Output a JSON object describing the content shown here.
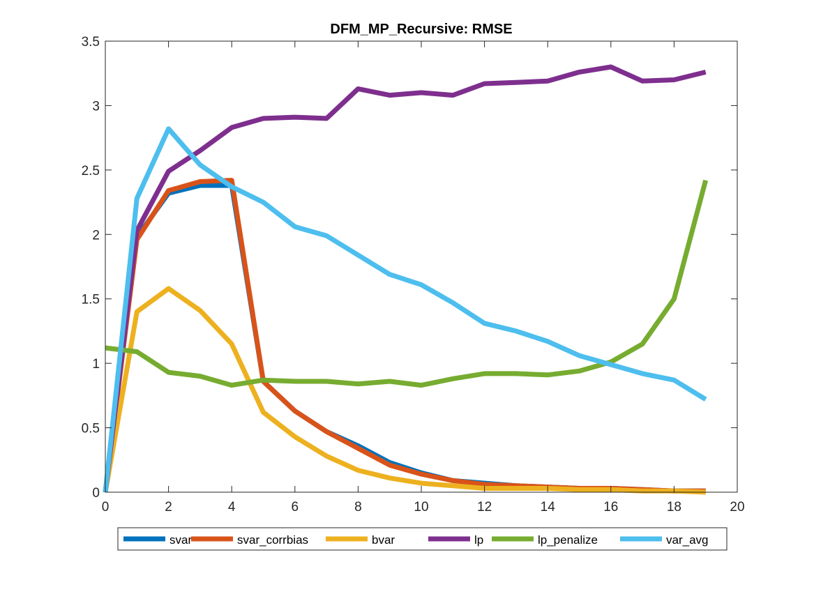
{
  "chart_data": {
    "type": "line",
    "title": "DFM_MP_Recursive: RMSE",
    "xlabel": "",
    "ylabel": "",
    "xlim": [
      0,
      20
    ],
    "ylim": [
      0,
      3.5
    ],
    "xticks": [
      0,
      2,
      4,
      6,
      8,
      10,
      12,
      14,
      16,
      18,
      20
    ],
    "yticks": [
      0,
      0.5,
      1,
      1.5,
      2,
      2.5,
      3,
      3.5
    ],
    "xtick_labels": [
      "0",
      "2",
      "4",
      "6",
      "8",
      "10",
      "12",
      "14",
      "16",
      "18",
      "20"
    ],
    "ytick_labels": [
      "0",
      "0.5",
      "1",
      "1.5",
      "2",
      "2.5",
      "3",
      "3.5"
    ],
    "grid": false,
    "legend_position": "bottom-outside",
    "x": [
      0,
      1,
      2,
      3,
      4,
      5,
      6,
      7,
      8,
      9,
      10,
      11,
      12,
      13,
      14,
      15,
      16,
      17,
      18,
      19
    ],
    "series": [
      {
        "name": "svar",
        "color": "#0072BD",
        "values": [
          0,
          1.98,
          2.32,
          2.38,
          2.38,
          0.86,
          0.63,
          0.47,
          0.36,
          0.23,
          0.15,
          0.09,
          0.07,
          0.05,
          0.04,
          0.03,
          0.03,
          0.02,
          0.01,
          0.01
        ]
      },
      {
        "name": "svar_corrbias",
        "color": "#D95319",
        "values": [
          0,
          1.96,
          2.34,
          2.41,
          2.42,
          0.86,
          0.63,
          0.47,
          0.34,
          0.21,
          0.14,
          0.09,
          0.06,
          0.05,
          0.04,
          0.03,
          0.03,
          0.02,
          0.01,
          0.01
        ]
      },
      {
        "name": "bvar",
        "color": "#EDB120",
        "values": [
          0,
          1.4,
          1.58,
          1.41,
          1.15,
          0.62,
          0.43,
          0.28,
          0.17,
          0.11,
          0.07,
          0.05,
          0.03,
          0.03,
          0.03,
          0.02,
          0.02,
          0.01,
          0.01,
          0.0
        ]
      },
      {
        "name": "lp",
        "color": "#7E2F8E",
        "values": [
          0,
          2.03,
          2.49,
          2.65,
          2.83,
          2.9,
          2.91,
          2.9,
          3.13,
          3.08,
          3.1,
          3.08,
          3.17,
          3.18,
          3.19,
          3.26,
          3.3,
          3.19,
          3.2,
          3.26
        ]
      },
      {
        "name": "lp_penalize",
        "color": "#77AC30",
        "values": [
          1.12,
          1.09,
          0.93,
          0.9,
          0.83,
          0.87,
          0.86,
          0.86,
          0.84,
          0.86,
          0.83,
          0.88,
          0.92,
          0.92,
          0.91,
          0.94,
          1.01,
          1.15,
          1.5,
          2.42
        ]
      },
      {
        "name": "var_avg",
        "color": "#4DBEEE",
        "values": [
          0,
          2.28,
          2.82,
          2.54,
          2.37,
          2.25,
          2.06,
          1.99,
          1.84,
          1.69,
          1.61,
          1.47,
          1.31,
          1.25,
          1.17,
          1.06,
          0.99,
          0.92,
          0.87,
          0.72
        ]
      }
    ]
  }
}
